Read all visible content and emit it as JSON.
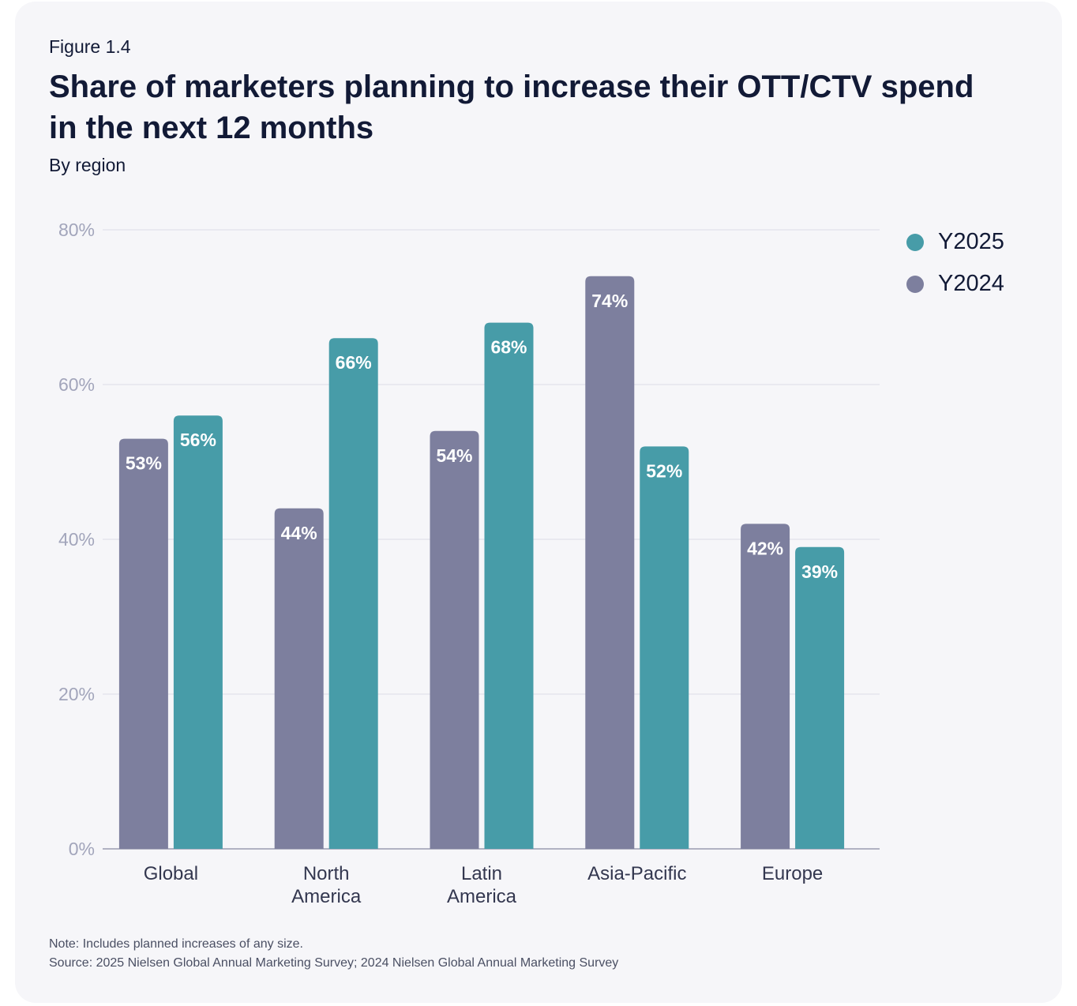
{
  "figure_label": "Figure 1.4",
  "title": "Share of marketers planning to increase their OTT/CTV spend in the next 12 months",
  "subtitle": "By region",
  "note": "Note: Includes planned increases of any size.",
  "source": "Source: 2025 Nielsen Global Annual Marketing Survey; 2024 Nielsen Global Annual Marketing Survey",
  "colors": {
    "y2024": "#7d7f9e",
    "y2025": "#479ca8",
    "grid": "#dcdce6",
    "tick": "#a2a5bb"
  },
  "chart_data": {
    "type": "bar",
    "title": "Share of marketers planning to increase their OTT/CTV spend in the next 12 months",
    "subtitle": "By region",
    "categories": [
      [
        "Global"
      ],
      [
        "North",
        "America"
      ],
      [
        "Latin",
        "America"
      ],
      [
        "Asia-Pacific"
      ],
      [
        "Europe"
      ]
    ],
    "series": [
      {
        "name": "Y2024",
        "values": [
          53,
          44,
          54,
          74,
          42
        ],
        "color": "#7d7f9e"
      },
      {
        "name": "Y2025",
        "values": [
          56,
          66,
          68,
          52,
          39
        ],
        "color": "#479ca8"
      }
    ],
    "ylim": [
      0,
      80
    ],
    "yticks": [
      0,
      20,
      40,
      60,
      80
    ],
    "ytick_labels": [
      "0%",
      "20%",
      "40%",
      "60%",
      "80%"
    ],
    "value_labels": [
      [
        "53%",
        "44%",
        "54%",
        "74%",
        "42%"
      ],
      [
        "56%",
        "66%",
        "68%",
        "52%",
        "39%"
      ]
    ],
    "legend": {
      "position": "right",
      "order": [
        "Y2025",
        "Y2024"
      ]
    },
    "grid": true
  }
}
